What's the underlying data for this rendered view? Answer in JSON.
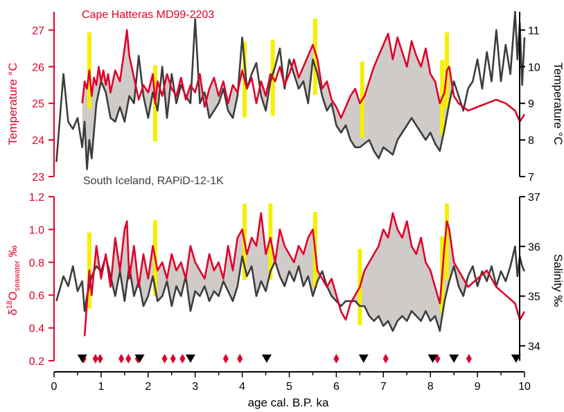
{
  "colors": {
    "red": "#E0002A",
    "dark": "#3C3C3C",
    "black": "#000000",
    "yellow": "#F5F000",
    "fill": "#CFCBC8"
  },
  "x_axis": {
    "label": "age cal. B.P. ka",
    "range": [
      0,
      10
    ],
    "ticks": [
      "0",
      "1",
      "2",
      "3",
      "4",
      "5",
      "6",
      "7",
      "8",
      "9",
      "10"
    ]
  },
  "chart_data": [
    {
      "type": "line",
      "panel": "top",
      "annotations": [
        "Cape Hatteras MD99-2203",
        "South Iceland, RAPiD-12-1K"
      ],
      "y_left": {
        "label": "Temperature °C",
        "range": [
          23,
          27.5
        ],
        "ticks": [
          "23",
          "24",
          "25",
          "26",
          "27"
        ]
      },
      "y_right": {
        "label": "Temperature °C",
        "range": [
          7,
          11.5
        ],
        "ticks": [
          "7",
          "8",
          "9",
          "10",
          "11"
        ]
      },
      "series": [
        {
          "name": "Cape Hatteras MD99-2203",
          "axis": "left",
          "color": "red",
          "x": [
            0.6,
            0.65,
            0.7,
            0.75,
            0.8,
            0.85,
            0.9,
            0.95,
            1.0,
            1.05,
            1.1,
            1.15,
            1.2,
            1.3,
            1.4,
            1.5,
            1.55,
            1.6,
            1.7,
            1.8,
            1.9,
            2.0,
            2.1,
            2.15,
            2.2,
            2.3,
            2.4,
            2.5,
            2.6,
            2.7,
            2.8,
            2.9,
            3.0,
            3.1,
            3.2,
            3.3,
            3.4,
            3.5,
            3.6,
            3.7,
            3.8,
            3.9,
            4.0,
            4.1,
            4.2,
            4.3,
            4.4,
            4.5,
            4.6,
            4.7,
            4.8,
            4.9,
            5.0,
            5.1,
            5.2,
            5.3,
            5.4,
            5.5,
            5.6,
            5.7,
            5.8,
            5.9,
            6.0,
            6.1,
            6.2,
            6.3,
            6.4,
            6.5,
            6.6,
            6.7,
            6.8,
            6.9,
            7.0,
            7.1,
            7.2,
            7.3,
            7.4,
            7.5,
            7.6,
            7.7,
            7.8,
            7.9,
            8.0,
            8.1,
            8.2,
            8.3,
            8.35,
            8.4,
            8.5,
            8.6,
            8.7,
            8.8,
            9.0,
            9.2,
            9.4,
            9.6,
            9.8,
            9.9,
            10.0
          ],
          "y": [
            25.0,
            25.6,
            25.4,
            25.9,
            25.2,
            25.7,
            25.5,
            26.0,
            25.6,
            25.9,
            25.5,
            25.8,
            25.3,
            25.9,
            25.6,
            26.5,
            27.0,
            26.3,
            25.7,
            25.1,
            25.5,
            25.3,
            25.8,
            25.0,
            25.6,
            25.2,
            25.8,
            25.4,
            25.2,
            25.7,
            25.1,
            25.5,
            25.3,
            25.8,
            24.9,
            25.4,
            25.7,
            25.2,
            25.6,
            25.0,
            25.5,
            25.3,
            25.9,
            25.4,
            25.7,
            25.0,
            25.6,
            25.2,
            25.8,
            25.6,
            26.0,
            25.5,
            25.8,
            26.2,
            25.7,
            26.0,
            26.3,
            26.6,
            26.2,
            25.4,
            25.6,
            25.1,
            24.9,
            24.6,
            24.9,
            25.2,
            25.4,
            25.0,
            25.2,
            25.6,
            26.0,
            26.3,
            26.6,
            26.9,
            26.2,
            26.8,
            26.4,
            26.0,
            26.7,
            26.3,
            26.0,
            26.5,
            25.8,
            25.6,
            25.0,
            25.3,
            25.9,
            26.0,
            25.2,
            25.0,
            24.9,
            24.8,
            24.9,
            25.0,
            25.1,
            25.0,
            24.8,
            24.5,
            24.7
          ]
        },
        {
          "name": "South Iceland, RAPiD-12-1K",
          "axis": "right",
          "color": "dark",
          "x": [
            0.05,
            0.2,
            0.3,
            0.4,
            0.5,
            0.6,
            0.65,
            0.7,
            0.75,
            0.8,
            0.9,
            1.0,
            1.1,
            1.2,
            1.3,
            1.4,
            1.5,
            1.6,
            1.7,
            1.8,
            1.9,
            2.0,
            2.1,
            2.2,
            2.3,
            2.4,
            2.5,
            2.6,
            2.7,
            2.8,
            2.9,
            3.0,
            3.1,
            3.2,
            3.3,
            3.4,
            3.5,
            3.6,
            3.7,
            3.8,
            3.9,
            4.0,
            4.1,
            4.2,
            4.3,
            4.4,
            4.5,
            4.6,
            4.7,
            4.8,
            4.9,
            5.0,
            5.1,
            5.2,
            5.3,
            5.4,
            5.5,
            5.6,
            5.7,
            5.8,
            5.9,
            6.0,
            6.1,
            6.2,
            6.3,
            6.4,
            6.5,
            6.6,
            6.7,
            6.8,
            6.9,
            7.0,
            7.1,
            7.2,
            7.3,
            7.4,
            7.5,
            7.6,
            7.7,
            7.8,
            7.9,
            8.0,
            8.1,
            8.2,
            8.3,
            8.4,
            8.5,
            8.6,
            8.7,
            8.8,
            8.9,
            9.0,
            9.1,
            9.2,
            9.3,
            9.4,
            9.5,
            9.6,
            9.7,
            9.8,
            9.85,
            9.9,
            9.95,
            10.0
          ],
          "y": [
            7.4,
            9.8,
            8.5,
            8.3,
            8.6,
            7.8,
            8.5,
            7.2,
            8.0,
            7.5,
            9.0,
            9.6,
            9.3,
            8.6,
            8.5,
            8.9,
            8.5,
            9.2,
            9.0,
            10.3,
            9.2,
            8.6,
            9.3,
            8.8,
            10.0,
            8.6,
            9.8,
            9.0,
            9.5,
            9.2,
            9.0,
            11.3,
            9.0,
            9.3,
            8.6,
            8.8,
            9.0,
            9.4,
            8.8,
            8.6,
            9.2,
            10.8,
            9.4,
            9.8,
            10.1,
            9.2,
            8.8,
            9.6,
            10.0,
            10.5,
            9.4,
            10.2,
            9.8,
            9.4,
            9.6,
            9.0,
            10.2,
            9.8,
            9.2,
            8.8,
            9.0,
            8.4,
            8.2,
            8.4,
            8.0,
            7.8,
            7.8,
            7.9,
            8.0,
            7.7,
            7.5,
            7.8,
            7.7,
            7.6,
            8.0,
            8.2,
            8.4,
            8.6,
            8.4,
            8.2,
            8.0,
            8.2,
            7.9,
            7.7,
            8.3,
            9.0,
            9.6,
            9.2,
            8.8,
            9.4,
            9.6,
            10.2,
            9.4,
            10.4,
            9.6,
            11.0,
            9.6,
            10.6,
            9.8,
            11.5,
            10.2,
            11.2,
            9.5,
            10.8
          ]
        }
      ],
      "highlight_bars_x": [
        0.75,
        2.15,
        4.05,
        4.65,
        5.55,
        6.55,
        8.25,
        8.35
      ]
    },
    {
      "type": "line",
      "panel": "bottom",
      "y_left": {
        "label": "δ18Oseawater ‰",
        "range": [
          0.2,
          1.2
        ],
        "ticks": [
          "0.2",
          "0.4",
          "0.6",
          "0.8",
          "1.0",
          "1.2"
        ]
      },
      "y_right": {
        "label": "Salinity ‰",
        "range": [
          33.7,
          37
        ],
        "ticks": [
          "34",
          "35",
          "36",
          "37"
        ]
      },
      "series": [
        {
          "name": "Cape Hatteras MD99-2203",
          "axis": "left",
          "color": "red",
          "x": [
            0.65,
            0.7,
            0.75,
            0.8,
            0.9,
            1.0,
            1.1,
            1.2,
            1.3,
            1.4,
            1.5,
            1.55,
            1.6,
            1.7,
            1.8,
            1.9,
            2.0,
            2.1,
            2.2,
            2.3,
            2.4,
            2.5,
            2.6,
            2.7,
            2.8,
            2.9,
            3.0,
            3.1,
            3.2,
            3.3,
            3.4,
            3.5,
            3.6,
            3.7,
            3.8,
            3.9,
            4.0,
            4.1,
            4.2,
            4.3,
            4.4,
            4.5,
            4.6,
            4.7,
            4.8,
            4.9,
            5.0,
            5.1,
            5.2,
            5.3,
            5.4,
            5.5,
            5.6,
            5.7,
            5.8,
            5.9,
            6.0,
            6.1,
            6.2,
            6.3,
            6.4,
            6.5,
            6.6,
            6.7,
            6.8,
            6.9,
            7.0,
            7.1,
            7.2,
            7.3,
            7.4,
            7.5,
            7.6,
            7.7,
            7.8,
            7.9,
            8.0,
            8.1,
            8.2,
            8.3,
            8.35,
            8.4,
            8.5,
            8.6,
            8.7,
            8.8,
            9.0,
            9.2,
            9.4,
            9.6,
            9.8,
            9.9,
            10.0
          ],
          "y": [
            0.35,
            0.55,
            0.75,
            0.6,
            0.9,
            0.7,
            0.85,
            0.65,
            0.95,
            0.75,
            1.0,
            1.05,
            0.7,
            0.9,
            0.65,
            0.85,
            0.7,
            0.9,
            0.75,
            0.8,
            0.7,
            0.85,
            0.75,
            0.8,
            0.7,
            0.9,
            0.8,
            0.75,
            0.7,
            0.85,
            0.75,
            0.8,
            0.7,
            0.9,
            0.75,
            0.95,
            1.0,
            0.85,
            0.95,
            0.9,
            1.1,
            0.85,
            0.95,
            0.8,
            1.0,
            0.9,
            0.85,
            0.8,
            0.9,
            0.85,
            0.95,
            1.0,
            0.75,
            0.7,
            0.65,
            0.7,
            0.6,
            0.5,
            0.45,
            0.55,
            0.6,
            0.65,
            0.75,
            0.8,
            0.85,
            0.9,
            1.0,
            0.95,
            1.1,
            1.0,
            0.95,
            1.05,
            0.9,
            0.85,
            0.95,
            0.8,
            0.75,
            0.65,
            0.55,
            0.9,
            1.05,
            1.0,
            0.8,
            0.75,
            0.7,
            0.65,
            0.7,
            0.75,
            0.65,
            0.6,
            0.55,
            0.45,
            0.5
          ]
        },
        {
          "name": "South Iceland, RAPiD-12-1K",
          "axis": "right",
          "color": "dark",
          "x": [
            0.05,
            0.2,
            0.3,
            0.4,
            0.5,
            0.6,
            0.65,
            0.7,
            0.8,
            0.9,
            1.0,
            1.1,
            1.2,
            1.3,
            1.4,
            1.5,
            1.6,
            1.7,
            1.8,
            1.9,
            2.0,
            2.1,
            2.2,
            2.3,
            2.4,
            2.5,
            2.6,
            2.7,
            2.8,
            2.9,
            3.0,
            3.1,
            3.2,
            3.3,
            3.4,
            3.5,
            3.6,
            3.7,
            3.8,
            3.9,
            4.0,
            4.1,
            4.2,
            4.3,
            4.4,
            4.5,
            4.6,
            4.7,
            4.8,
            4.9,
            5.0,
            5.1,
            5.2,
            5.3,
            5.4,
            5.5,
            5.6,
            5.7,
            5.8,
            5.9,
            6.0,
            6.1,
            6.2,
            6.3,
            6.4,
            6.5,
            6.6,
            6.7,
            6.8,
            6.9,
            7.0,
            7.1,
            7.2,
            7.3,
            7.4,
            7.5,
            7.6,
            7.7,
            7.8,
            7.9,
            8.0,
            8.1,
            8.2,
            8.3,
            8.4,
            8.5,
            8.6,
            8.7,
            8.8,
            8.9,
            9.0,
            9.1,
            9.2,
            9.3,
            9.4,
            9.5,
            9.6,
            9.7,
            9.8,
            9.85,
            9.9,
            9.95,
            10.0
          ],
          "y": [
            34.9,
            35.4,
            35.2,
            35.6,
            35.1,
            35.3,
            34.7,
            35.0,
            35.4,
            35.6,
            35.5,
            35.8,
            35.4,
            35.0,
            35.5,
            34.9,
            35.6,
            35.0,
            35.3,
            34.8,
            35.0,
            35.4,
            34.9,
            35.0,
            35.3,
            34.8,
            35.2,
            35.0,
            35.4,
            34.7,
            35.1,
            35.0,
            35.2,
            34.9,
            35.1,
            35.0,
            35.3,
            35.1,
            34.9,
            35.2,
            35.8,
            35.4,
            35.6,
            35.0,
            35.3,
            35.1,
            35.5,
            35.7,
            35.4,
            35.2,
            35.5,
            35.3,
            35.6,
            35.2,
            35.4,
            35.0,
            35.3,
            35.5,
            35.2,
            35.0,
            34.9,
            34.8,
            34.9,
            34.9,
            34.9,
            34.8,
            34.8,
            34.6,
            34.5,
            34.6,
            34.4,
            34.5,
            34.3,
            34.5,
            34.6,
            34.5,
            34.7,
            34.6,
            34.5,
            34.7,
            34.5,
            34.6,
            34.3,
            34.9,
            35.3,
            35.6,
            35.2,
            35.0,
            35.4,
            35.6,
            35.2,
            35.5,
            35.3,
            35.6,
            35.2,
            35.5,
            35.3,
            35.6,
            36.0,
            35.4,
            35.8,
            35.6,
            35.5
          ]
        }
      ],
      "highlight_bars_x": [
        0.75,
        2.15,
        4.05,
        4.6,
        5.55,
        6.5,
        8.25,
        8.35
      ]
    }
  ],
  "markers": {
    "red_diamonds_x": [
      0.63,
      0.88,
      0.98,
      1.43,
      1.58,
      1.78,
      2.35,
      2.53,
      2.73,
      3.65,
      3.95,
      6.0,
      7.05,
      8.15,
      8.82
    ],
    "black_triangles_x": [
      0.6,
      1.82,
      2.9,
      4.52,
      6.58,
      8.05,
      8.5,
      9.82
    ]
  }
}
